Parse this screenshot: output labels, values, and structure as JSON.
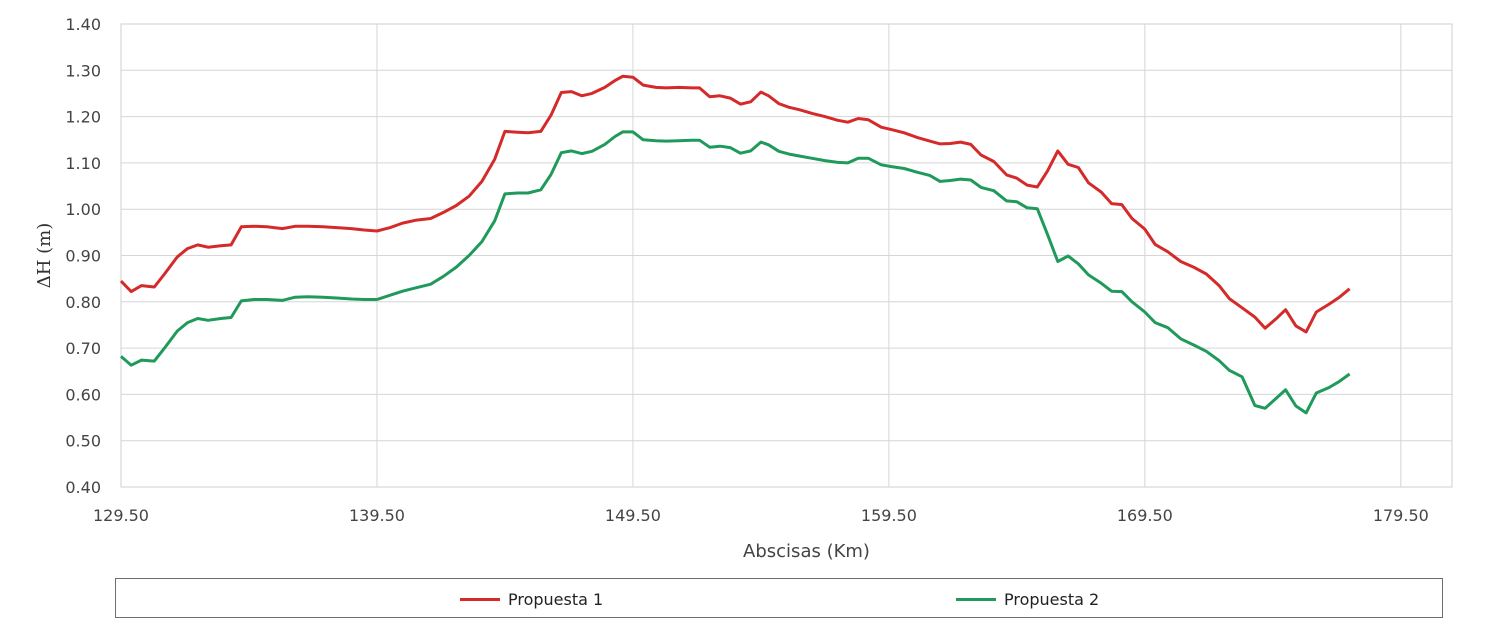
{
  "chart_data": {
    "type": "line",
    "title": "",
    "xlabel": "Abscisas (Km)",
    "ylabel": "ΔH (m)",
    "xlim": [
      129.5,
      181.5
    ],
    "ylim": [
      0.4,
      1.4
    ],
    "grid": true,
    "legend_position": "bottom",
    "x_ticks": [
      "129.50",
      "139.50",
      "149.50",
      "159.50",
      "169.50",
      "179.50"
    ],
    "x_tick_values": [
      129.5,
      139.5,
      149.5,
      159.5,
      169.5,
      179.5
    ],
    "y_ticks": [
      "0.40",
      "0.50",
      "0.60",
      "0.70",
      "0.80",
      "0.90",
      "1.00",
      "1.10",
      "1.20",
      "1.30",
      "1.40"
    ],
    "y_tick_values": [
      0.4,
      0.5,
      0.6,
      0.7,
      0.8,
      0.9,
      1.0,
      1.1,
      1.2,
      1.3,
      1.4
    ],
    "series": [
      {
        "name": "Propuesta 1",
        "color": "#d42a2a",
        "points": [
          [
            129.5,
            0.845
          ],
          [
            129.9,
            0.822
          ],
          [
            130.3,
            0.835
          ],
          [
            130.8,
            0.832
          ],
          [
            131.2,
            0.86
          ],
          [
            131.7,
            0.897
          ],
          [
            132.1,
            0.915
          ],
          [
            132.5,
            0.923
          ],
          [
            132.9,
            0.918
          ],
          [
            133.4,
            0.921
          ],
          [
            133.8,
            0.923
          ],
          [
            134.2,
            0.962
          ],
          [
            134.7,
            0.963
          ],
          [
            135.2,
            0.962
          ],
          [
            135.8,
            0.958
          ],
          [
            136.3,
            0.963
          ],
          [
            136.8,
            0.963
          ],
          [
            137.4,
            0.962
          ],
          [
            138.0,
            0.96
          ],
          [
            138.5,
            0.958
          ],
          [
            139.0,
            0.955
          ],
          [
            139.5,
            0.953
          ],
          [
            140.0,
            0.96
          ],
          [
            140.5,
            0.97
          ],
          [
            141.0,
            0.976
          ],
          [
            141.6,
            0.98
          ],
          [
            142.1,
            0.993
          ],
          [
            142.6,
            1.008
          ],
          [
            143.1,
            1.028
          ],
          [
            143.6,
            1.06
          ],
          [
            144.1,
            1.108
          ],
          [
            144.5,
            1.168
          ],
          [
            145.0,
            1.166
          ],
          [
            145.4,
            1.165
          ],
          [
            145.9,
            1.168
          ],
          [
            146.3,
            1.203
          ],
          [
            146.7,
            1.252
          ],
          [
            147.1,
            1.254
          ],
          [
            147.5,
            1.245
          ],
          [
            147.9,
            1.25
          ],
          [
            148.4,
            1.263
          ],
          [
            148.8,
            1.278
          ],
          [
            149.1,
            1.287
          ],
          [
            149.5,
            1.285
          ],
          [
            149.9,
            1.268
          ],
          [
            150.4,
            1.263
          ],
          [
            150.8,
            1.262
          ],
          [
            151.3,
            1.263
          ],
          [
            151.8,
            1.262
          ],
          [
            152.1,
            1.262
          ],
          [
            152.5,
            1.243
          ],
          [
            152.9,
            1.245
          ],
          [
            153.3,
            1.24
          ],
          [
            153.7,
            1.227
          ],
          [
            154.1,
            1.232
          ],
          [
            154.5,
            1.253
          ],
          [
            154.8,
            1.245
          ],
          [
            155.2,
            1.228
          ],
          [
            155.6,
            1.22
          ],
          [
            156.0,
            1.215
          ],
          [
            156.5,
            1.207
          ],
          [
            157.0,
            1.2
          ],
          [
            157.5,
            1.192
          ],
          [
            157.9,
            1.188
          ],
          [
            158.3,
            1.196
          ],
          [
            158.7,
            1.193
          ],
          [
            159.2,
            1.177
          ],
          [
            159.6,
            1.172
          ],
          [
            160.1,
            1.165
          ],
          [
            160.6,
            1.155
          ],
          [
            161.1,
            1.147
          ],
          [
            161.5,
            1.141
          ],
          [
            161.9,
            1.142
          ],
          [
            162.3,
            1.145
          ],
          [
            162.7,
            1.14
          ],
          [
            163.1,
            1.117
          ],
          [
            163.6,
            1.103
          ],
          [
            164.1,
            1.074
          ],
          [
            164.5,
            1.067
          ],
          [
            164.9,
            1.052
          ],
          [
            165.3,
            1.048
          ],
          [
            165.7,
            1.083
          ],
          [
            166.1,
            1.126
          ],
          [
            166.5,
            1.097
          ],
          [
            166.9,
            1.09
          ],
          [
            167.3,
            1.057
          ],
          [
            167.8,
            1.037
          ],
          [
            168.2,
            1.012
          ],
          [
            168.6,
            1.01
          ],
          [
            169.0,
            0.98
          ],
          [
            169.5,
            0.957
          ],
          [
            169.9,
            0.924
          ],
          [
            170.4,
            0.908
          ],
          [
            170.9,
            0.887
          ],
          [
            171.4,
            0.875
          ],
          [
            171.9,
            0.86
          ],
          [
            172.4,
            0.835
          ],
          [
            172.8,
            0.807
          ],
          [
            173.3,
            0.787
          ],
          [
            173.8,
            0.767
          ],
          [
            174.2,
            0.743
          ],
          [
            174.6,
            0.762
          ],
          [
            175.0,
            0.783
          ],
          [
            175.4,
            0.748
          ],
          [
            175.8,
            0.735
          ],
          [
            176.2,
            0.778
          ],
          [
            176.7,
            0.795
          ],
          [
            177.1,
            0.81
          ],
          [
            177.5,
            0.828
          ]
        ]
      },
      {
        "name": "Propuesta 2",
        "color": "#1f9a5a",
        "points": [
          [
            129.5,
            0.682
          ],
          [
            129.9,
            0.663
          ],
          [
            130.3,
            0.674
          ],
          [
            130.8,
            0.672
          ],
          [
            131.2,
            0.7
          ],
          [
            131.7,
            0.737
          ],
          [
            132.1,
            0.755
          ],
          [
            132.5,
            0.764
          ],
          [
            132.9,
            0.76
          ],
          [
            133.4,
            0.764
          ],
          [
            133.8,
            0.766
          ],
          [
            134.2,
            0.802
          ],
          [
            134.7,
            0.805
          ],
          [
            135.2,
            0.805
          ],
          [
            135.8,
            0.803
          ],
          [
            136.3,
            0.81
          ],
          [
            136.8,
            0.811
          ],
          [
            137.4,
            0.81
          ],
          [
            138.0,
            0.808
          ],
          [
            138.5,
            0.806
          ],
          [
            139.0,
            0.805
          ],
          [
            139.5,
            0.805
          ],
          [
            140.0,
            0.814
          ],
          [
            140.5,
            0.823
          ],
          [
            141.0,
            0.83
          ],
          [
            141.6,
            0.838
          ],
          [
            142.1,
            0.855
          ],
          [
            142.6,
            0.875
          ],
          [
            143.1,
            0.9
          ],
          [
            143.6,
            0.93
          ],
          [
            144.1,
            0.975
          ],
          [
            144.5,
            1.033
          ],
          [
            145.0,
            1.035
          ],
          [
            145.4,
            1.035
          ],
          [
            145.9,
            1.042
          ],
          [
            146.3,
            1.075
          ],
          [
            146.7,
            1.122
          ],
          [
            147.1,
            1.126
          ],
          [
            147.5,
            1.12
          ],
          [
            147.9,
            1.125
          ],
          [
            148.4,
            1.14
          ],
          [
            148.8,
            1.157
          ],
          [
            149.1,
            1.167
          ],
          [
            149.5,
            1.167
          ],
          [
            149.9,
            1.15
          ],
          [
            150.4,
            1.148
          ],
          [
            150.8,
            1.147
          ],
          [
            151.3,
            1.148
          ],
          [
            151.8,
            1.149
          ],
          [
            152.1,
            1.149
          ],
          [
            152.5,
            1.134
          ],
          [
            152.9,
            1.136
          ],
          [
            153.3,
            1.133
          ],
          [
            153.7,
            1.121
          ],
          [
            154.1,
            1.126
          ],
          [
            154.5,
            1.145
          ],
          [
            154.8,
            1.139
          ],
          [
            155.2,
            1.125
          ],
          [
            155.6,
            1.119
          ],
          [
            156.0,
            1.115
          ],
          [
            156.5,
            1.11
          ],
          [
            157.0,
            1.105
          ],
          [
            157.5,
            1.101
          ],
          [
            157.9,
            1.1
          ],
          [
            158.3,
            1.11
          ],
          [
            158.7,
            1.11
          ],
          [
            159.2,
            1.096
          ],
          [
            159.6,
            1.092
          ],
          [
            160.1,
            1.088
          ],
          [
            160.6,
            1.08
          ],
          [
            161.1,
            1.073
          ],
          [
            161.5,
            1.06
          ],
          [
            161.9,
            1.062
          ],
          [
            162.3,
            1.065
          ],
          [
            162.7,
            1.063
          ],
          [
            163.1,
            1.047
          ],
          [
            163.6,
            1.04
          ],
          [
            164.1,
            1.018
          ],
          [
            164.5,
            1.016
          ],
          [
            164.9,
            1.003
          ],
          [
            165.3,
            1.001
          ],
          [
            165.7,
            0.945
          ],
          [
            166.1,
            0.887
          ],
          [
            166.5,
            0.899
          ],
          [
            166.9,
            0.882
          ],
          [
            167.3,
            0.858
          ],
          [
            167.8,
            0.84
          ],
          [
            168.2,
            0.823
          ],
          [
            168.6,
            0.822
          ],
          [
            169.0,
            0.8
          ],
          [
            169.5,
            0.778
          ],
          [
            169.9,
            0.755
          ],
          [
            170.4,
            0.744
          ],
          [
            170.9,
            0.72
          ],
          [
            171.4,
            0.707
          ],
          [
            171.9,
            0.693
          ],
          [
            172.4,
            0.673
          ],
          [
            172.8,
            0.652
          ],
          [
            173.3,
            0.638
          ],
          [
            173.8,
            0.576
          ],
          [
            174.2,
            0.57
          ],
          [
            174.6,
            0.59
          ],
          [
            175.0,
            0.61
          ],
          [
            175.4,
            0.575
          ],
          [
            175.8,
            0.56
          ],
          [
            176.2,
            0.603
          ],
          [
            176.7,
            0.615
          ],
          [
            177.1,
            0.628
          ],
          [
            177.5,
            0.644
          ]
        ]
      }
    ]
  }
}
